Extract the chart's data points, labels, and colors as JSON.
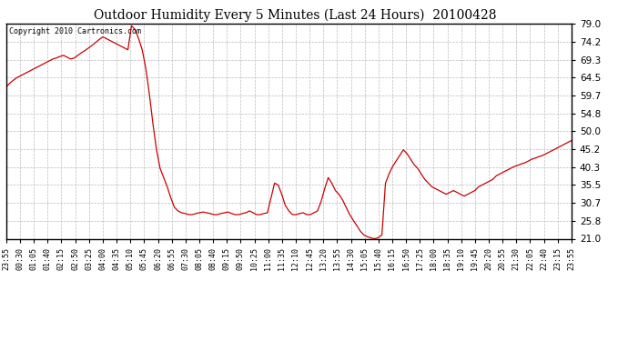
{
  "title": "Outdoor Humidity Every 5 Minutes (Last 24 Hours)  20100428",
  "copyright_text": "Copyright 2010 Cartronics.com",
  "line_color": "#cc0000",
  "bg_color": "#ffffff",
  "plot_bg_color": "#ffffff",
  "grid_color": "#bbbbbb",
  "ylim": [
    21.0,
    79.0
  ],
  "yticks": [
    21.0,
    25.8,
    30.7,
    35.5,
    40.3,
    45.2,
    50.0,
    54.8,
    59.7,
    64.5,
    69.3,
    74.2,
    79.0
  ],
  "xtick_labels": [
    "23:55",
    "00:30",
    "01:05",
    "01:40",
    "02:15",
    "02:50",
    "03:25",
    "04:00",
    "04:35",
    "05:10",
    "05:45",
    "06:20",
    "06:55",
    "07:30",
    "08:05",
    "08:40",
    "09:15",
    "09:50",
    "10:25",
    "11:00",
    "11:35",
    "12:10",
    "12:45",
    "13:20",
    "13:55",
    "14:30",
    "15:05",
    "15:40",
    "16:15",
    "16:50",
    "17:25",
    "18:00",
    "18:35",
    "19:10",
    "19:45",
    "20:20",
    "20:55",
    "21:30",
    "22:05",
    "22:40",
    "23:15",
    "23:55"
  ],
  "humidity_values": [
    62.0,
    63.0,
    63.8,
    64.5,
    65.0,
    65.5,
    66.0,
    66.5,
    67.0,
    67.5,
    68.0,
    68.5,
    69.0,
    69.5,
    69.8,
    70.2,
    70.5,
    70.0,
    69.5,
    69.8,
    70.5,
    71.2,
    71.8,
    72.5,
    73.2,
    74.0,
    74.8,
    75.5,
    75.0,
    74.5,
    74.0,
    73.5,
    73.0,
    72.5,
    72.0,
    78.5,
    77.5,
    75.0,
    72.0,
    67.0,
    60.0,
    52.0,
    45.0,
    40.0,
    37.5,
    35.0,
    32.0,
    29.5,
    28.5,
    28.0,
    27.8,
    27.5,
    27.5,
    27.8,
    28.0,
    28.2,
    28.0,
    27.8,
    27.5,
    27.5,
    27.8,
    28.0,
    28.2,
    27.8,
    27.5,
    27.5,
    27.8,
    28.0,
    28.5,
    28.0,
    27.5,
    27.5,
    27.8,
    28.0,
    32.0,
    36.0,
    35.5,
    33.0,
    30.0,
    28.5,
    27.5,
    27.5,
    27.8,
    28.0,
    27.5,
    27.5,
    28.0,
    28.5,
    31.0,
    34.5,
    37.5,
    36.0,
    34.0,
    33.0,
    31.5,
    29.5,
    27.5,
    26.0,
    24.5,
    23.0,
    22.0,
    21.5,
    21.2,
    21.0,
    21.3,
    22.0,
    36.0,
    38.5,
    40.5,
    42.0,
    43.5,
    45.0,
    44.0,
    42.5,
    41.0,
    40.0,
    38.5,
    37.0,
    36.0,
    35.0,
    34.5,
    34.0,
    33.5,
    33.0,
    33.5,
    34.0,
    33.5,
    33.0,
    32.5,
    33.0,
    33.5,
    34.0,
    35.0,
    35.5,
    36.0,
    36.5,
    37.0,
    38.0,
    38.5,
    39.0,
    39.5,
    40.0,
    40.5,
    40.8,
    41.2,
    41.5,
    42.0,
    42.5,
    42.8,
    43.2,
    43.5,
    44.0,
    44.5,
    45.0,
    45.5,
    46.0,
    46.5,
    47.0,
    47.5
  ]
}
